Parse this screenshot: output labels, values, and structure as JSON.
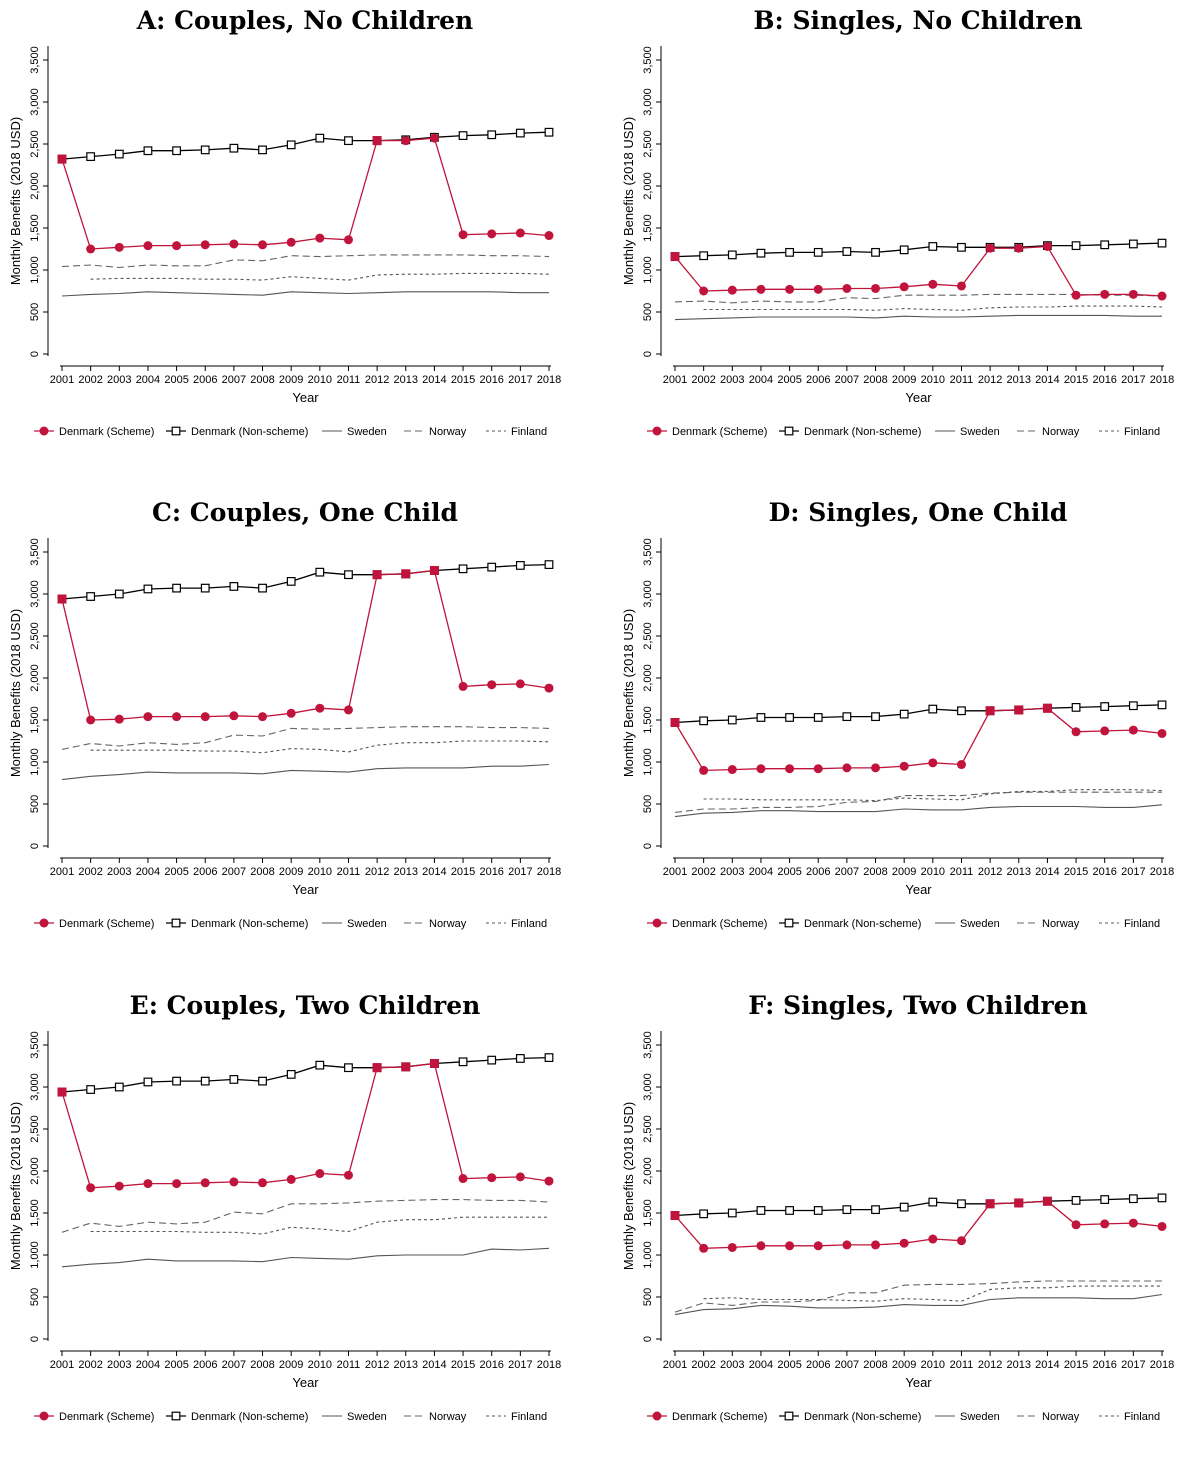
{
  "chart_data": [
    {
      "type": "line",
      "title": "A: Couples, No Children",
      "xlabel": "Year",
      "ylabel": "Monthly Benefits (2018 USD)",
      "ylim": [
        0,
        3500
      ],
      "yticks": [
        "0",
        "500",
        "1,000",
        "1,500",
        "2,000",
        "2,500",
        "3,000",
        "3,500"
      ],
      "x": [
        2001,
        2002,
        2003,
        2004,
        2005,
        2006,
        2007,
        2008,
        2009,
        2010,
        2011,
        2012,
        2013,
        2014,
        2015,
        2016,
        2017,
        2018
      ],
      "legend_position": "bottom",
      "series": [
        {
          "name": "Denmark (Scheme)",
          "values": [
            2320,
            1250,
            1270,
            1290,
            1290,
            1300,
            1310,
            1300,
            1330,
            1380,
            1360,
            2540,
            2540,
            2570,
            1420,
            1430,
            1440,
            1410
          ]
        },
        {
          "name": "Denmark (Non-scheme)",
          "values": [
            2320,
            2350,
            2380,
            2420,
            2420,
            2430,
            2450,
            2430,
            2490,
            2570,
            2540,
            2540,
            2550,
            2580,
            2600,
            2610,
            2630,
            2640
          ]
        },
        {
          "name": "Sweden",
          "values": [
            690,
            710,
            720,
            740,
            730,
            720,
            710,
            700,
            740,
            730,
            720,
            730,
            740,
            740,
            740,
            740,
            730,
            730
          ]
        },
        {
          "name": "Norway",
          "values": [
            1040,
            1060,
            1030,
            1060,
            1050,
            1050,
            1120,
            1110,
            1170,
            1160,
            1170,
            1180,
            1180,
            1180,
            1180,
            1170,
            1170,
            1160
          ]
        },
        {
          "name": "Finland",
          "values": [
            null,
            890,
            900,
            900,
            900,
            890,
            890,
            880,
            920,
            900,
            880,
            940,
            950,
            950,
            960,
            960,
            960,
            950
          ]
        }
      ]
    },
    {
      "type": "line",
      "title": "B: Singles, No Children",
      "xlabel": "Year",
      "ylabel": "Monthly Benefits (2018 USD)",
      "ylim": [
        0,
        3500
      ],
      "yticks": [
        "0",
        "500",
        "1,000",
        "1,500",
        "2,000",
        "2,500",
        "3,000",
        "3,500"
      ],
      "x": [
        2001,
        2002,
        2003,
        2004,
        2005,
        2006,
        2007,
        2008,
        2009,
        2010,
        2011,
        2012,
        2013,
        2014,
        2015,
        2016,
        2017,
        2018
      ],
      "legend_position": "bottom",
      "series": [
        {
          "name": "Denmark (Scheme)",
          "values": [
            1160,
            750,
            760,
            770,
            770,
            770,
            780,
            780,
            800,
            830,
            810,
            1260,
            1260,
            1280,
            700,
            710,
            710,
            690
          ]
        },
        {
          "name": "Denmark (Non-scheme)",
          "values": [
            1160,
            1170,
            1180,
            1200,
            1210,
            1210,
            1220,
            1210,
            1240,
            1280,
            1270,
            1270,
            1270,
            1290,
            1290,
            1300,
            1310,
            1320
          ]
        },
        {
          "name": "Sweden",
          "values": [
            410,
            420,
            430,
            440,
            440,
            440,
            440,
            430,
            450,
            440,
            440,
            450,
            460,
            460,
            460,
            460,
            450,
            450
          ]
        },
        {
          "name": "Norway",
          "values": [
            620,
            630,
            610,
            630,
            620,
            620,
            670,
            660,
            700,
            700,
            700,
            710,
            710,
            710,
            710,
            700,
            700,
            690
          ]
        },
        {
          "name": "Finland",
          "values": [
            null,
            530,
            530,
            530,
            530,
            530,
            530,
            520,
            540,
            530,
            520,
            550,
            560,
            560,
            570,
            570,
            570,
            560
          ]
        }
      ]
    },
    {
      "type": "line",
      "title": "C: Couples, One Child",
      "xlabel": "Year",
      "ylabel": "Monthly Benefits (2018 USD)",
      "ylim": [
        0,
        3500
      ],
      "yticks": [
        "0",
        "500",
        "1,000",
        "1,500",
        "2,000",
        "2,500",
        "3,000",
        "3,500"
      ],
      "x": [
        2001,
        2002,
        2003,
        2004,
        2005,
        2006,
        2007,
        2008,
        2009,
        2010,
        2011,
        2012,
        2013,
        2014,
        2015,
        2016,
        2017,
        2018
      ],
      "legend_position": "bottom",
      "series": [
        {
          "name": "Denmark (Scheme)",
          "values": [
            2940,
            1500,
            1510,
            1540,
            1540,
            1540,
            1550,
            1540,
            1580,
            1640,
            1620,
            3230,
            3240,
            3280,
            1900,
            1920,
            1930,
            1880
          ]
        },
        {
          "name": "Denmark (Non-scheme)",
          "values": [
            2940,
            2970,
            3000,
            3060,
            3070,
            3070,
            3090,
            3070,
            3150,
            3260,
            3230,
            3230,
            3240,
            3280,
            3300,
            3320,
            3340,
            3350
          ]
        },
        {
          "name": "Sweden",
          "values": [
            790,
            830,
            850,
            880,
            870,
            870,
            870,
            860,
            900,
            890,
            880,
            920,
            930,
            930,
            930,
            950,
            950,
            970
          ]
        },
        {
          "name": "Norway",
          "values": [
            1150,
            1220,
            1190,
            1230,
            1210,
            1230,
            1320,
            1310,
            1400,
            1390,
            1400,
            1410,
            1420,
            1420,
            1420,
            1410,
            1410,
            1400
          ]
        },
        {
          "name": "Finland",
          "values": [
            null,
            1140,
            1140,
            1140,
            1140,
            1130,
            1130,
            1110,
            1160,
            1150,
            1120,
            1200,
            1230,
            1230,
            1250,
            1250,
            1250,
            1240
          ]
        }
      ]
    },
    {
      "type": "line",
      "title": "D: Singles, One Child",
      "xlabel": "Year",
      "ylabel": "Monthly Benefits (2018 USD)",
      "ylim": [
        0,
        3500
      ],
      "yticks": [
        "0",
        "500",
        "1,000",
        "1,500",
        "2,000",
        "2,500",
        "3,000",
        "3,500"
      ],
      "x": [
        2001,
        2002,
        2003,
        2004,
        2005,
        2006,
        2007,
        2008,
        2009,
        2010,
        2011,
        2012,
        2013,
        2014,
        2015,
        2016,
        2017,
        2018
      ],
      "legend_position": "bottom",
      "series": [
        {
          "name": "Denmark (Scheme)",
          "values": [
            1470,
            900,
            910,
            920,
            920,
            920,
            930,
            930,
            950,
            990,
            970,
            1610,
            1620,
            1640,
            1360,
            1370,
            1380,
            1340
          ]
        },
        {
          "name": "Denmark (Non-scheme)",
          "values": [
            1470,
            1490,
            1500,
            1530,
            1530,
            1530,
            1540,
            1540,
            1570,
            1630,
            1610,
            1610,
            1620,
            1640,
            1650,
            1660,
            1670,
            1680
          ]
        },
        {
          "name": "Sweden",
          "values": [
            350,
            390,
            400,
            420,
            420,
            410,
            410,
            410,
            440,
            430,
            430,
            460,
            470,
            470,
            470,
            460,
            460,
            490
          ]
        },
        {
          "name": "Norway",
          "values": [
            400,
            440,
            440,
            460,
            460,
            470,
            520,
            530,
            600,
            600,
            600,
            630,
            640,
            640,
            640,
            640,
            640,
            640
          ]
        },
        {
          "name": "Finland",
          "values": [
            null,
            560,
            560,
            550,
            550,
            550,
            550,
            540,
            570,
            560,
            550,
            620,
            650,
            650,
            670,
            670,
            670,
            660
          ]
        }
      ]
    },
    {
      "type": "line",
      "title": "E: Couples, Two Children",
      "xlabel": "Year",
      "ylabel": "Monthly Benefits (2018 USD)",
      "ylim": [
        0,
        3500
      ],
      "yticks": [
        "0",
        "500",
        "1,000",
        "1,500",
        "2,000",
        "2,500",
        "3,000",
        "3,500"
      ],
      "x": [
        2001,
        2002,
        2003,
        2004,
        2005,
        2006,
        2007,
        2008,
        2009,
        2010,
        2011,
        2012,
        2013,
        2014,
        2015,
        2016,
        2017,
        2018
      ],
      "legend_position": "bottom",
      "series": [
        {
          "name": "Denmark (Scheme)",
          "values": [
            2940,
            1800,
            1820,
            1850,
            1850,
            1860,
            1870,
            1860,
            1900,
            1970,
            1950,
            3230,
            3240,
            3280,
            1910,
            1920,
            1930,
            1880
          ]
        },
        {
          "name": "Denmark (Non-scheme)",
          "values": [
            2940,
            2970,
            3000,
            3060,
            3070,
            3070,
            3090,
            3070,
            3150,
            3260,
            3230,
            3230,
            3240,
            3280,
            3300,
            3320,
            3340,
            3350
          ]
        },
        {
          "name": "Sweden",
          "values": [
            860,
            890,
            910,
            950,
            930,
            930,
            930,
            920,
            970,
            960,
            950,
            990,
            1000,
            1000,
            1000,
            1070,
            1060,
            1080
          ]
        },
        {
          "name": "Norway",
          "values": [
            1270,
            1380,
            1340,
            1390,
            1370,
            1390,
            1510,
            1490,
            1610,
            1610,
            1620,
            1640,
            1650,
            1660,
            1660,
            1650,
            1650,
            1630
          ]
        },
        {
          "name": "Finland",
          "values": [
            null,
            1280,
            1280,
            1280,
            1280,
            1270,
            1270,
            1250,
            1330,
            1310,
            1280,
            1390,
            1420,
            1420,
            1450,
            1450,
            1450,
            1450
          ]
        }
      ]
    },
    {
      "type": "line",
      "title": "F: Singles, Two Children",
      "xlabel": "Year",
      "ylabel": "Monthly Benefits (2018 USD)",
      "ylim": [
        0,
        3500
      ],
      "yticks": [
        "0",
        "500",
        "1,000",
        "1,500",
        "2,000",
        "2,500",
        "3,000",
        "3,500"
      ],
      "x": [
        2001,
        2002,
        2003,
        2004,
        2005,
        2006,
        2007,
        2008,
        2009,
        2010,
        2011,
        2012,
        2013,
        2014,
        2015,
        2016,
        2017,
        2018
      ],
      "legend_position": "bottom",
      "series": [
        {
          "name": "Denmark (Scheme)",
          "values": [
            1470,
            1080,
            1090,
            1110,
            1110,
            1110,
            1120,
            1120,
            1140,
            1190,
            1170,
            1610,
            1620,
            1640,
            1360,
            1370,
            1380,
            1340
          ]
        },
        {
          "name": "Denmark (Non-scheme)",
          "values": [
            1470,
            1490,
            1500,
            1530,
            1530,
            1530,
            1540,
            1540,
            1570,
            1630,
            1610,
            1610,
            1620,
            1640,
            1650,
            1660,
            1670,
            1680
          ]
        },
        {
          "name": "Sweden",
          "values": [
            290,
            350,
            360,
            400,
            390,
            370,
            370,
            380,
            410,
            400,
            400,
            470,
            490,
            490,
            490,
            480,
            480,
            530
          ]
        },
        {
          "name": "Norway",
          "values": [
            320,
            430,
            400,
            440,
            440,
            460,
            550,
            550,
            640,
            650,
            650,
            660,
            680,
            690,
            690,
            690,
            690,
            690
          ]
        },
        {
          "name": "Finland",
          "values": [
            null,
            480,
            490,
            470,
            470,
            470,
            460,
            450,
            480,
            470,
            450,
            590,
            610,
            610,
            630,
            630,
            630,
            630
          ]
        }
      ]
    }
  ],
  "styles": {
    "scheme_color": "#c0143c",
    "nonscheme_color": "#000000",
    "sweden_color": "#555555",
    "norway_color": "#666666",
    "finland_color": "#555555"
  }
}
